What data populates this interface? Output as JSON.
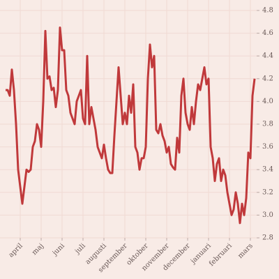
{
  "chart_data": {
    "type": "line",
    "categories": [
      null,
      null,
      null,
      null,
      null,
      null,
      null,
      "april",
      null,
      null,
      null,
      null,
      null,
      null,
      null,
      null,
      null,
      "maj",
      null,
      null,
      null,
      null,
      null,
      null,
      null,
      null,
      null,
      "juni",
      null,
      null,
      null,
      null,
      null,
      null,
      null,
      null,
      null,
      "juli",
      null,
      null,
      null,
      null,
      null,
      null,
      null,
      null,
      null,
      "augusti",
      null,
      null,
      null,
      null,
      null,
      null,
      null,
      null,
      null,
      "september",
      null,
      null,
      null,
      null,
      null,
      null,
      null,
      null,
      null,
      "oktober",
      null,
      null,
      null,
      null,
      null,
      null,
      null,
      null,
      null,
      "november",
      null,
      null,
      null,
      null,
      null,
      null,
      null,
      null,
      null,
      "december",
      null,
      null,
      null,
      null,
      null,
      null,
      null,
      null,
      null,
      "januari",
      null,
      null,
      null,
      null,
      null,
      null,
      null,
      null,
      null,
      "februari",
      null,
      null,
      null,
      null,
      null,
      null,
      null,
      null,
      null,
      "mars",
      null,
      null
    ],
    "values": [
      4.1,
      4.1,
      4.05,
      4.28,
      4.1,
      3.8,
      3.4,
      3.25,
      3.1,
      3.25,
      3.4,
      3.38,
      3.4,
      3.6,
      3.65,
      3.8,
      3.75,
      3.6,
      4.0,
      4.62,
      4.2,
      4.22,
      4.1,
      4.12,
      3.95,
      4.1,
      4.65,
      4.45,
      4.45,
      4.1,
      4.05,
      3.9,
      3.85,
      3.8,
      4.0,
      4.05,
      4.1,
      3.85,
      3.8,
      4.4,
      3.8,
      3.95,
      3.85,
      3.75,
      3.6,
      3.55,
      3.5,
      3.62,
      3.5,
      3.4,
      3.37,
      3.37,
      3.7,
      4.0,
      4.3,
      4.05,
      3.8,
      3.9,
      3.8,
      4.05,
      3.9,
      4.15,
      3.6,
      3.55,
      3.4,
      3.5,
      3.5,
      3.6,
      4.2,
      4.5,
      4.3,
      4.4,
      3.75,
      3.72,
      3.8,
      3.7,
      3.65,
      3.55,
      3.6,
      3.45,
      3.42,
      3.4,
      3.68,
      3.55,
      4.05,
      4.2,
      3.9,
      3.8,
      3.75,
      3.95,
      3.8,
      4.0,
      4.15,
      4.1,
      4.2,
      4.3,
      4.15,
      4.2,
      3.6,
      3.5,
      3.3,
      3.45,
      3.5,
      3.3,
      3.4,
      3.35,
      3.2,
      3.1,
      3.0,
      3.05,
      3.2,
      3.1,
      2.93,
      3.1,
      3.0,
      3.15,
      3.55,
      3.5,
      4.05,
      4.2
    ],
    "color": "#c0393b",
    "ylim": [
      2.8,
      4.8
    ],
    "yticks": [
      2.8,
      {
        "value": 3,
        "label": "3.0"
      },
      3.2,
      3.4,
      3.6,
      3.8,
      {
        "value": 4,
        "label": "4.0"
      },
      4.2,
      4.4,
      4.6,
      4.8
    ],
    "grid": true
  }
}
